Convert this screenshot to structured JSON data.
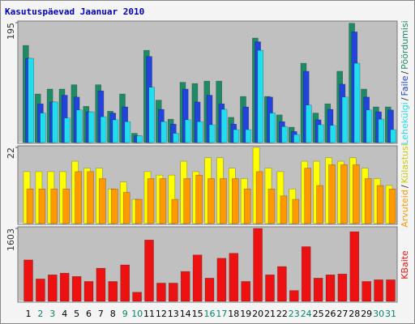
{
  "title": "Kasutuspäevad Jaanuar 2010",
  "separator": "/",
  "chart_data": [
    {
      "type": "bar",
      "ylim": [
        0,
        195
      ],
      "yticks": [
        195
      ],
      "series": [
        {
          "name": "Pöördumisi",
          "color": "#1f8a66",
          "values": [
            158,
            79,
            87,
            87,
            94,
            59,
            94,
            51,
            79,
            15,
            150,
            69,
            38,
            98,
            96,
            100,
            100,
            41,
            75,
            170,
            75,
            45,
            25,
            129,
            48,
            63,
            116,
            194,
            87,
            58,
            58
          ]
        },
        {
          "name": "Faile",
          "color": "#2244dd",
          "values": [
            137,
            63,
            66,
            77,
            74,
            50,
            84,
            48,
            58,
            11,
            140,
            54,
            30,
            87,
            66,
            77,
            63,
            30,
            58,
            164,
            74,
            34,
            18,
            116,
            37,
            54,
            95,
            180,
            74,
            50,
            53
          ]
        },
        {
          "name": "Lehekülgi",
          "color": "#22ddee",
          "values": [
            137,
            48,
            66,
            40,
            53,
            50,
            42,
            37,
            34,
            11,
            90,
            34,
            15,
            37,
            34,
            29,
            54,
            21,
            21,
            150,
            48,
            26,
            13,
            61,
            29,
            28,
            74,
            129,
            53,
            38,
            21
          ]
        }
      ]
    },
    {
      "type": "bar",
      "ylim": [
        0,
        22
      ],
      "yticks": [
        22
      ],
      "series": [
        {
          "name": "Külastusi",
          "color": "#ffff00",
          "values": [
            15,
            15,
            15,
            15,
            18,
            16,
            16,
            10,
            12,
            7,
            15,
            14,
            14,
            18,
            15,
            19,
            19,
            16,
            13,
            22,
            16,
            15,
            10,
            18,
            18,
            19,
            18,
            19,
            16,
            13,
            11
          ]
        },
        {
          "name": "Arvuteid",
          "color": "#ff9900",
          "values": [
            10,
            10,
            10,
            10,
            15,
            15,
            13,
            10,
            9,
            7,
            13,
            13,
            7,
            13,
            14,
            13,
            13,
            13,
            10,
            15,
            10,
            8,
            7,
            16,
            11,
            17,
            17,
            17,
            13,
            11,
            10
          ]
        }
      ]
    },
    {
      "type": "bar",
      "ylim": [
        0,
        1603
      ],
      "yticks": [
        1603
      ],
      "categories": [
        "1",
        "2",
        "3",
        "4",
        "5",
        "6",
        "7",
        "8",
        "9",
        "10",
        "11",
        "12",
        "13",
        "14",
        "15",
        "16",
        "17",
        "18",
        "19",
        "20",
        "21",
        "22",
        "23",
        "24",
        "25",
        "26",
        "27",
        "28",
        "29",
        "30",
        "31"
      ],
      "category_colors": [
        "#000000",
        "#008866",
        "#008866",
        "#000000",
        "#000000",
        "#000000",
        "#000000",
        "#000000",
        "#008866",
        "#008866",
        "#000000",
        "#000000",
        "#000000",
        "#000000",
        "#000000",
        "#008866",
        "#008866",
        "#000000",
        "#000000",
        "#000000",
        "#000000",
        "#000000",
        "#008866",
        "#008866",
        "#000000",
        "#000000",
        "#000000",
        "#000000",
        "#000000",
        "#008866",
        "#008866"
      ],
      "series": [
        {
          "name": "KBaite",
          "color": "#ee1111",
          "values": [
            910,
            492,
            583,
            619,
            546,
            437,
            728,
            437,
            801,
            200,
            1348,
            401,
            401,
            656,
            1020,
            510,
            947,
            1056,
            437,
            1603,
            583,
            765,
            237,
            1202,
            510,
            583,
            601,
            1530,
            437,
            474,
            474
          ]
        }
      ]
    }
  ]
}
